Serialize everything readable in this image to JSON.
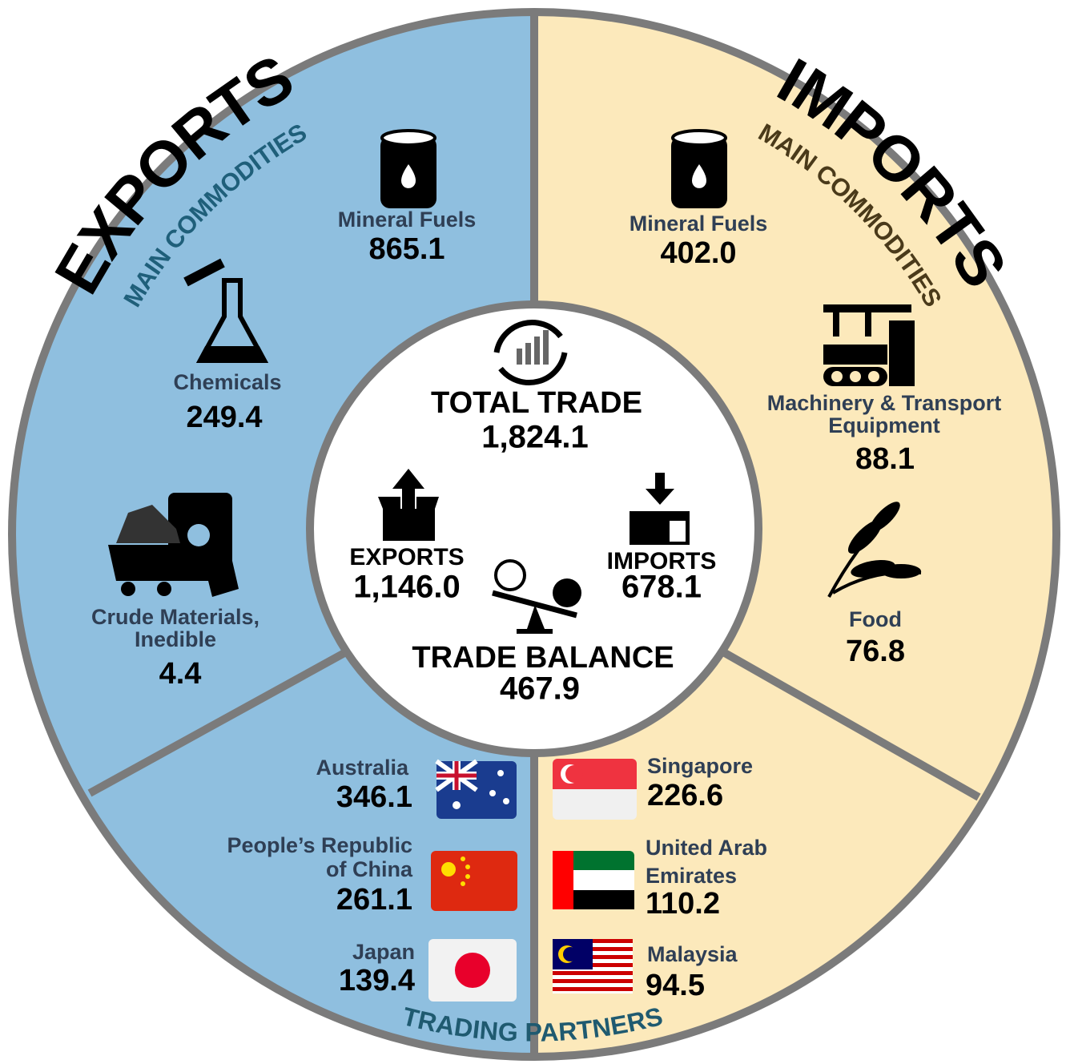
{
  "exports": {
    "title": "EXPORTS",
    "commodities_label": "MAIN COMMODITIES",
    "commodities": [
      {
        "name_lines": [
          "Mineral Fuels"
        ],
        "value": "865.1"
      },
      {
        "name_lines": [
          "Chemicals"
        ],
        "value": "249.4"
      },
      {
        "name_lines": [
          "Crude Materials,",
          "Inedible"
        ],
        "value": "4.4"
      }
    ],
    "partners": [
      {
        "name_lines": [
          "Australia"
        ],
        "value": "346.1"
      },
      {
        "name_lines": [
          "People’s Republic",
          "of China"
        ],
        "value": "261.1"
      },
      {
        "name_lines": [
          "Japan"
        ],
        "value": "139.4"
      }
    ]
  },
  "imports": {
    "title": "IMPORTS",
    "commodities_label": "MAIN COMMODITIES",
    "commodities": [
      {
        "name_lines": [
          "Mineral Fuels"
        ],
        "value": "402.0"
      },
      {
        "name_lines": [
          "Machinery & Transport",
          "Equipment"
        ],
        "value": "88.1"
      },
      {
        "name_lines": [
          "Food"
        ],
        "value": "76.8"
      }
    ],
    "partners": [
      {
        "name_lines": [
          "Singapore"
        ],
        "value": "226.6"
      },
      {
        "name_lines": [
          "United Arab",
          "Emirates"
        ],
        "value": "110.2"
      },
      {
        "name_lines": [
          "Malaysia"
        ],
        "value": "94.5"
      }
    ]
  },
  "partners_label": "TRADING PARTNERS",
  "center": {
    "total": {
      "label": "TOTAL TRADE",
      "value": "1,824.1"
    },
    "exports": {
      "label": "EXPORTS",
      "value": "1,146.0"
    },
    "imports": {
      "label": "IMPORTS",
      "value": "678.1"
    },
    "balance": {
      "label": "TRADE BALANCE",
      "value": "467.9"
    }
  }
}
